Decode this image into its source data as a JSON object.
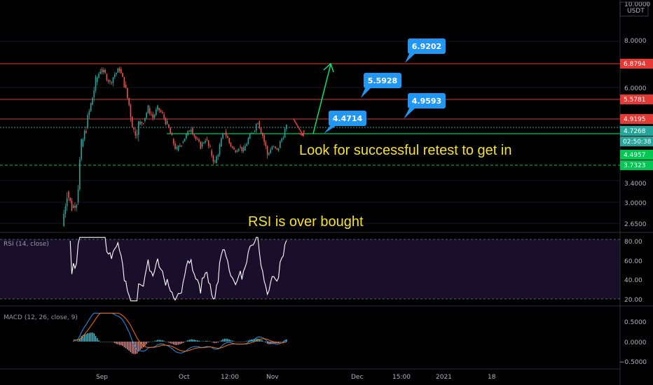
{
  "app": {
    "currency_label": "USDT"
  },
  "colors": {
    "background": "#000000",
    "up_candle": "#26a69a",
    "down_candle": "#ef5350",
    "resistance_line": "#e53935",
    "support_green": "#00c853",
    "green_arrow": "#00e676",
    "red_arrow": "#f23645",
    "callout_blue": "#2196f3",
    "annotation_yellow": "#f5e12e",
    "rsi_line": "#ffffff",
    "rsi_fill": "#1a0f2a",
    "macd_line": "#2196f3",
    "signal_line": "#ff6d00"
  },
  "annotations": {
    "retest_text": "Look for successful retest to get in",
    "rsi_text": "RSI is over bought"
  },
  "price_axis": {
    "ticks": [
      "10.0000",
      "8.0000",
      "6.0000",
      "5.0000",
      "3.4000",
      "3.0000",
      "2.6500"
    ],
    "tags": [
      {
        "label": "6.8794",
        "value": 6.8794,
        "color": "#e53935"
      },
      {
        "label": "5.5781",
        "value": 5.5781,
        "color": "#e53935"
      },
      {
        "label": "4.9195",
        "value": 4.9195,
        "color": "#e53935"
      },
      {
        "label": "4.7268",
        "value": 4.7268,
        "color": "#26a69a"
      },
      {
        "label": "02:50:38",
        "value": 4.6,
        "color": "#26a69a"
      },
      {
        "label": "4.4957",
        "value": 4.4957,
        "color": "#00c853"
      },
      {
        "label": "3.7323",
        "value": 3.7323,
        "color": "#00c853"
      }
    ]
  },
  "callouts": [
    {
      "label": "6.9202",
      "value": 6.9202
    },
    {
      "label": "5.5928",
      "value": 5.5928
    },
    {
      "label": "4.9593",
      "value": 4.9593
    },
    {
      "label": "4.4714",
      "value": 4.4714
    }
  ],
  "time_axis": {
    "labels": [
      "Sep",
      "Oct",
      "12:00",
      "Nov",
      "Dec",
      "15:00",
      "2021",
      "18"
    ]
  },
  "rsi": {
    "label": "RSI (14, close)",
    "ticks": [
      "80.00",
      "60.00",
      "40.00",
      "20.00"
    ],
    "upper_band": 80,
    "lower_band": 20
  },
  "macd": {
    "label": "MACD (12, 26, close, 9)",
    "ticks": [
      "0.5000",
      "0.0000",
      "−0.5000"
    ]
  },
  "chart_data": {
    "type": "candlestick",
    "price_scale": "log",
    "ylim": [
      2.5,
      10.0
    ],
    "horizontal_levels": [
      6.8794,
      5.5781,
      4.9195,
      4.7268,
      3.7323
    ],
    "ohlc_approx": [
      [
        2.6,
        3.4,
        2.55,
        3.2
      ],
      [
        3.2,
        3.3,
        2.8,
        2.9
      ],
      [
        2.9,
        3.1,
        2.7,
        3.0
      ],
      [
        3.0,
        4.4,
        2.95,
        4.2
      ],
      [
        4.2,
        4.9,
        4.0,
        4.7
      ],
      [
        4.7,
        5.6,
        4.5,
        5.4
      ],
      [
        5.4,
        6.5,
        5.2,
        6.2
      ],
      [
        6.2,
        6.9,
        5.9,
        6.7
      ],
      [
        6.7,
        6.95,
        6.3,
        6.5
      ],
      [
        6.5,
        6.8,
        6.0,
        6.2
      ],
      [
        6.2,
        6.6,
        5.8,
        6.5
      ],
      [
        6.5,
        6.9,
        6.2,
        6.7
      ],
      [
        6.7,
        6.8,
        6.0,
        6.1
      ],
      [
        6.1,
        6.3,
        5.3,
        5.4
      ],
      [
        5.4,
        5.6,
        4.4,
        4.6
      ],
      [
        4.6,
        4.9,
        3.6,
        4.8
      ],
      [
        4.8,
        5.1,
        4.5,
        4.9
      ],
      [
        4.9,
        5.4,
        4.8,
        5.3
      ],
      [
        5.3,
        5.5,
        4.9,
        5.0
      ],
      [
        5.0,
        5.4,
        4.9,
        5.3
      ],
      [
        5.3,
        5.5,
        5.0,
        5.1
      ],
      [
        5.1,
        5.3,
        4.7,
        4.8
      ],
      [
        4.8,
        4.9,
        4.3,
        4.4
      ],
      [
        4.4,
        4.6,
        4.0,
        4.1
      ],
      [
        4.1,
        4.4,
        3.9,
        4.3
      ],
      [
        4.3,
        4.6,
        4.2,
        4.5
      ],
      [
        4.5,
        4.8,
        4.4,
        4.7
      ],
      [
        4.7,
        4.8,
        4.3,
        4.4
      ],
      [
        4.4,
        4.5,
        4.1,
        4.2
      ],
      [
        4.2,
        4.5,
        4.1,
        4.4
      ],
      [
        4.4,
        4.6,
        4.0,
        4.1
      ],
      [
        4.1,
        4.2,
        3.7,
        3.8
      ],
      [
        3.8,
        4.3,
        3.7,
        4.2
      ],
      [
        4.2,
        4.7,
        4.1,
        4.6
      ],
      [
        4.6,
        4.7,
        4.2,
        4.3
      ],
      [
        4.3,
        4.4,
        4.0,
        4.1
      ],
      [
        4.1,
        4.3,
        3.9,
        4.2
      ],
      [
        4.2,
        4.4,
        4.0,
        4.1
      ],
      [
        4.1,
        4.5,
        4.0,
        4.4
      ],
      [
        4.4,
        4.7,
        4.3,
        4.6
      ],
      [
        4.6,
        5.0,
        4.5,
        4.9
      ],
      [
        4.9,
        5.0,
        4.4,
        4.5
      ],
      [
        4.5,
        4.6,
        3.9,
        4.0
      ],
      [
        4.0,
        4.3,
        3.9,
        4.2
      ],
      [
        4.2,
        4.3,
        3.95,
        4.1
      ],
      [
        4.1,
        4.5,
        4.0,
        4.4
      ],
      [
        4.4,
        4.8,
        4.3,
        4.75
      ]
    ]
  }
}
